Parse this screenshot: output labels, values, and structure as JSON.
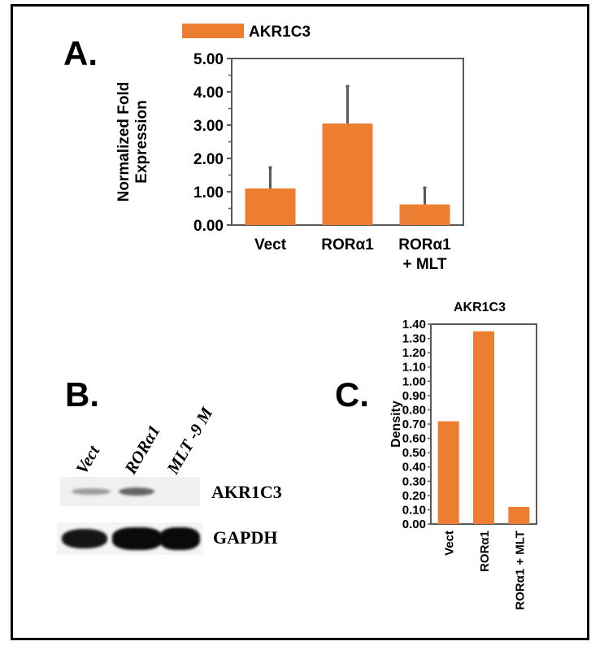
{
  "panels": {
    "a_label": "A.",
    "b_label": "B.",
    "c_label": "C."
  },
  "colors": {
    "bar": "#ed7d31",
    "error": "#595959",
    "axis": "#595959"
  },
  "chart_data": [
    {
      "id": "A",
      "type": "bar",
      "legend": "AKR1C3",
      "legend_position": "top",
      "ylabel": "Normalized Fold Expression",
      "categories": [
        "Vect",
        "RORα1",
        "RORα1\n+ MLT"
      ],
      "values": [
        1.1,
        3.05,
        0.62
      ],
      "errors": [
        0.63,
        1.12,
        0.5
      ],
      "ylim": [
        0,
        5
      ],
      "yticks": [
        "0.00",
        "1.00",
        "2.00",
        "3.00",
        "4.00",
        "5.00"
      ],
      "grid": false
    },
    {
      "id": "C",
      "type": "bar",
      "title": "AKR1C3",
      "ylabel": "Density",
      "categories": [
        "Vect",
        "RORα1",
        "RORα1 + MLT"
      ],
      "values": [
        0.72,
        1.35,
        0.12
      ],
      "ylim": [
        0,
        1.4
      ],
      "yticks": [
        "0.00",
        "0.10",
        "0.20",
        "0.30",
        "0.40",
        "0.50",
        "0.60",
        "0.70",
        "0.80",
        "0.90",
        "1.00",
        "1.10",
        "1.20",
        "1.30",
        "1.40"
      ],
      "grid": false
    }
  ],
  "blot": {
    "lanes": [
      "Vect",
      "RORα1",
      "MLT -9 M"
    ],
    "rows": [
      {
        "label": "AKR1C3",
        "intensities": [
          0.35,
          0.6,
          0.0
        ]
      },
      {
        "label": "GAPDH",
        "intensities": [
          0.95,
          1.0,
          1.0
        ]
      }
    ]
  }
}
